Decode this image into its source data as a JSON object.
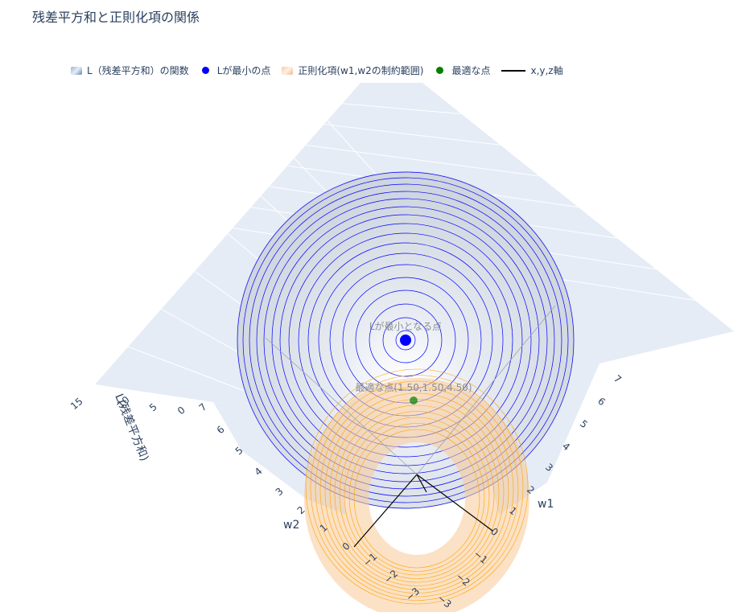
{
  "chart_data": {
    "type": "surface3d",
    "title": "残差平方和と正則化項の関係",
    "legend": {
      "placement": "top",
      "entries": [
        {
          "label": "L（残差平方和）の関数",
          "symbol": "surface",
          "color": "#9ab5d1"
        },
        {
          "label": "Lが最小の点",
          "symbol": "marker",
          "color": "#0000ff"
        },
        {
          "label": "正則化項(w1,w2の制約範囲)",
          "symbol": "surface",
          "color": "#f6c9a6"
        },
        {
          "label": "最適な点",
          "symbol": "marker",
          "color": "#008000"
        },
        {
          "label": "x,y,z軸",
          "symbol": "line",
          "color": "#000000"
        }
      ]
    },
    "axes": {
      "w1": {
        "title": "w1",
        "ticks": [
          "7",
          "6",
          "5",
          "4",
          "3",
          "2",
          "1",
          "0",
          "−1",
          "−2",
          "−3"
        ]
      },
      "w2": {
        "title": "w2",
        "ticks": [
          "7",
          "6",
          "5",
          "4",
          "3",
          "2",
          "1",
          "0",
          "−1",
          "−2",
          "−3"
        ]
      },
      "L": {
        "title": "L(残差平方和)",
        "ticks": [
          "15",
          "10",
          "5",
          "0"
        ]
      }
    },
    "points": [
      {
        "name": "Lが最小となる点",
        "label": "Lが最小となる点",
        "color": "#0000ff"
      },
      {
        "name": "最適な点",
        "label": "最適な点(1.50,1.50,4.50)",
        "w1": 1.5,
        "w2": 1.5,
        "L": 4.5,
        "color": "#008000"
      }
    ],
    "loss_contour_color": "#0000ff",
    "constraint_contour_color": "#ffa500",
    "axis_line_color": "#000000"
  }
}
